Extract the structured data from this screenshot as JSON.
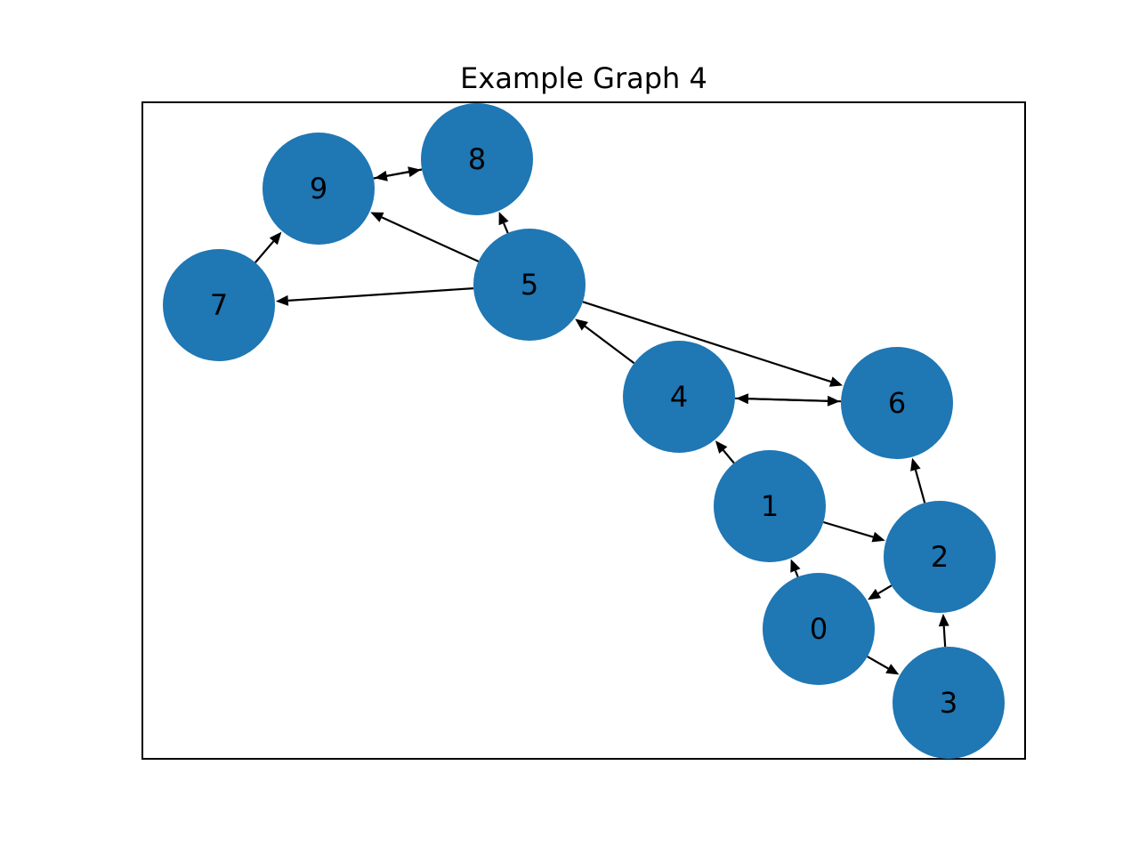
{
  "title": "Example Graph 4",
  "node_color": "#1f77b4",
  "edge_color": "#000000",
  "directed": true,
  "nodes": [
    "0",
    "1",
    "2",
    "3",
    "4",
    "5",
    "6",
    "7",
    "8",
    "9"
  ],
  "edges": [
    {
      "from": "0",
      "to": "1"
    },
    {
      "from": "0",
      "to": "3"
    },
    {
      "from": "1",
      "to": "2"
    },
    {
      "from": "1",
      "to": "4"
    },
    {
      "from": "2",
      "to": "0"
    },
    {
      "from": "2",
      "to": "6"
    },
    {
      "from": "3",
      "to": "2"
    },
    {
      "from": "4",
      "to": "5"
    },
    {
      "from": "4",
      "to": "6"
    },
    {
      "from": "6",
      "to": "4"
    },
    {
      "from": "5",
      "to": "6"
    },
    {
      "from": "5",
      "to": "7"
    },
    {
      "from": "5",
      "to": "8"
    },
    {
      "from": "5",
      "to": "9"
    },
    {
      "from": "7",
      "to": "9"
    },
    {
      "from": "8",
      "to": "9"
    },
    {
      "from": "9",
      "to": "8"
    }
  ]
}
